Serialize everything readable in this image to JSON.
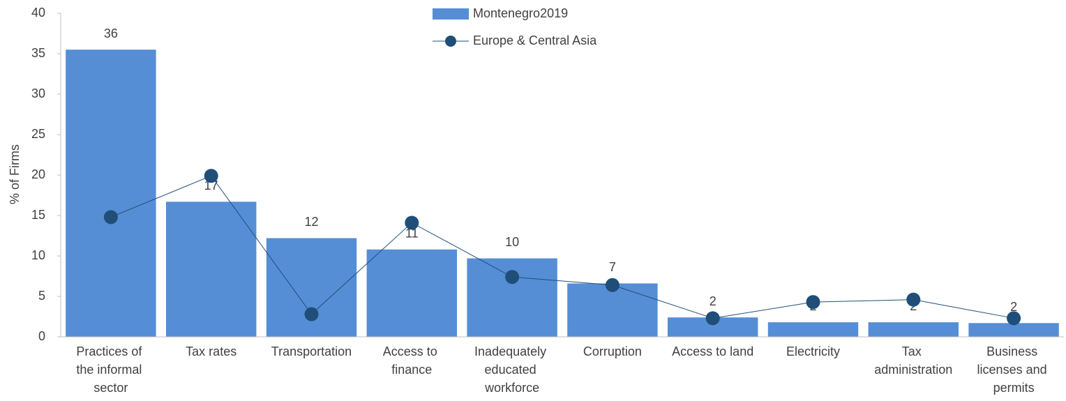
{
  "chart_data": {
    "type": "bar",
    "y_label": "% of Firms",
    "categories": [
      "Practices of the informal sector",
      "Tax rates",
      "Transportation",
      "Access to finance",
      "Inadequately educated workforce",
      "Corruption",
      "Access to land",
      "Electricity",
      "Tax administration",
      "Business licenses and permits"
    ],
    "series": [
      {
        "name": "Montenegro2019",
        "type": "bar",
        "color": "#558ed5",
        "values": [
          35.5,
          16.7,
          12.2,
          10.8,
          9.7,
          6.6,
          2.4,
          1.8,
          1.8,
          1.7
        ],
        "value_labels": [
          "36",
          "17",
          "12",
          "11",
          "10",
          "7",
          "2",
          "2",
          "2",
          "2"
        ]
      },
      {
        "name": "Europe & Central Asia",
        "type": "line",
        "color": "#1f4e79",
        "values": [
          14.8,
          19.9,
          2.8,
          14.1,
          7.4,
          6.4,
          2.3,
          4.3,
          4.6,
          2.3
        ]
      }
    ],
    "ylim": [
      0,
      40
    ],
    "yticks": [
      0,
      5,
      10,
      15,
      20,
      25,
      30,
      35,
      40
    ],
    "legend": "top"
  }
}
